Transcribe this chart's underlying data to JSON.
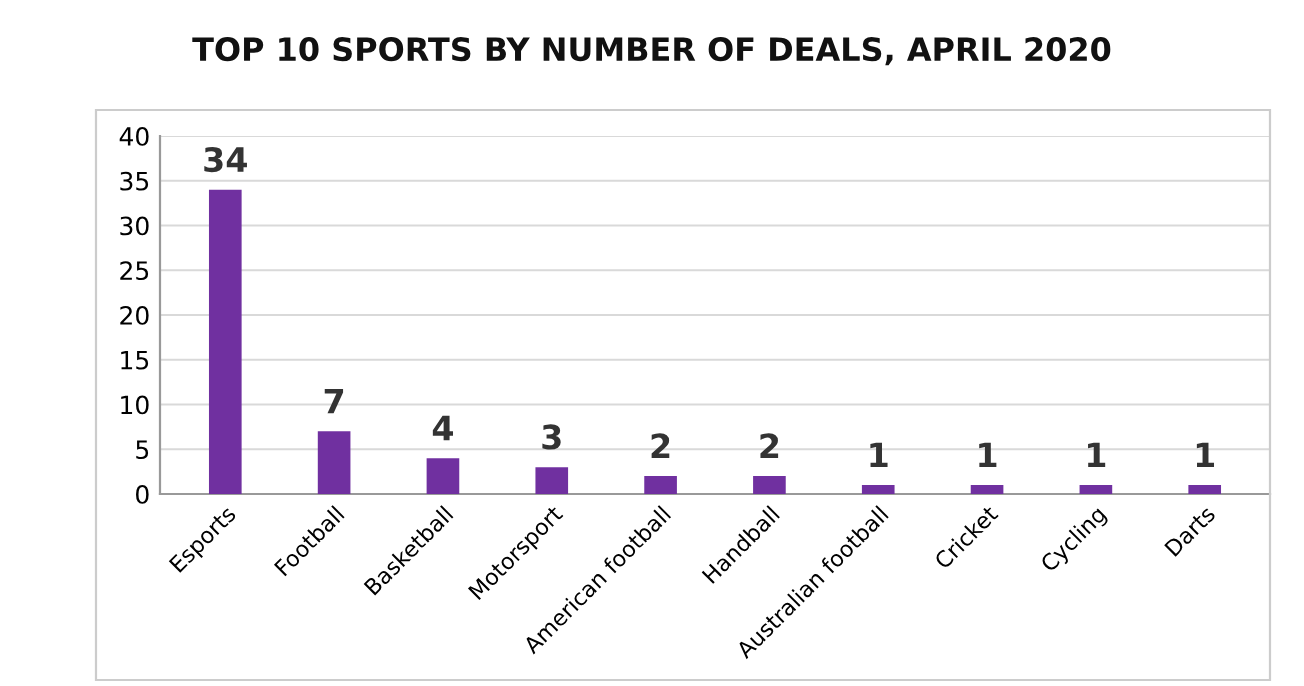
{
  "chart_data": {
    "type": "bar",
    "title": "TOP 10 SPORTS BY NUMBER OF DEALS, APRIL 2020",
    "categories": [
      "Esports",
      "Football",
      "Basketball",
      "Motorsport",
      "American football",
      "Handball",
      "Australian football",
      "Cricket",
      "Cycling",
      "Darts"
    ],
    "values": [
      34,
      7,
      4,
      3,
      2,
      2,
      1,
      1,
      1,
      1
    ],
    "color": "#7030a0",
    "ylim": [
      0,
      40
    ],
    "yticks": [
      0,
      5,
      10,
      15,
      20,
      25,
      30,
      35,
      40
    ],
    "grid": "y",
    "data_labels": true,
    "legend": false
  }
}
